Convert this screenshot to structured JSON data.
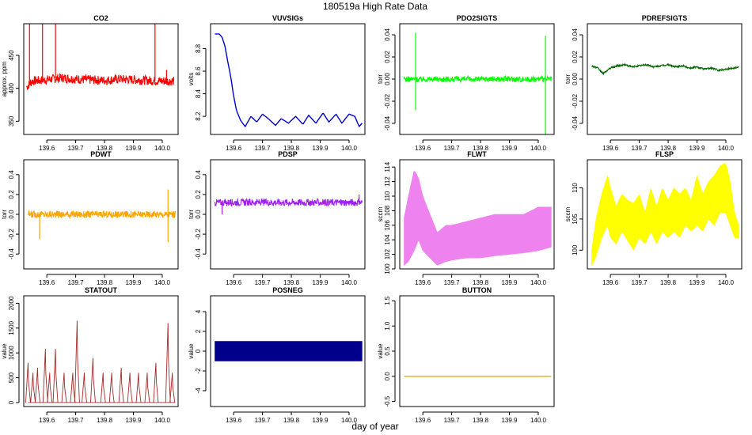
{
  "figure": {
    "title": "180519a   High Rate Data",
    "xlabel": "day of year"
  },
  "chart_data": [
    {
      "id": "co2",
      "type": "line",
      "title": "CO2",
      "ylabel": "approx. ppm",
      "color": "#ff0000",
      "style": "noisy",
      "xlim": [
        139.52,
        140.055
      ],
      "ylim": [
        330,
        498
      ],
      "xticks": [
        139.6,
        139.7,
        139.8,
        139.9,
        140.0
      ],
      "yticks": [
        350,
        400,
        450
      ],
      "x": [
        139.53,
        139.55,
        139.6,
        139.65,
        139.7,
        139.75,
        139.8,
        139.85,
        139.9,
        139.95,
        140.0,
        140.04
      ],
      "y": [
        402,
        411,
        413,
        416,
        414,
        413,
        412,
        414,
        413,
        412,
        411,
        411
      ],
      "noise": 7,
      "spikes": [
        {
          "x": 139.54,
          "y": 498
        },
        {
          "x": 139.585,
          "y": 498
        },
        {
          "x": 139.63,
          "y": 498
        },
        {
          "x": 139.975,
          "y": 498
        },
        {
          "x": 140.015,
          "y": 428
        }
      ]
    },
    {
      "id": "vuvsigs",
      "type": "line",
      "title": "VUVSIGs",
      "ylabel": "volts",
      "color": "#0000cd",
      "style": "line",
      "xlim": [
        139.52,
        140.055
      ],
      "ylim": [
        8.04,
        9.02
      ],
      "xticks": [
        139.6,
        139.7,
        139.8,
        139.9,
        140.0
      ],
      "yticks": [
        8.2,
        8.4,
        8.6,
        8.8
      ],
      "x": [
        139.535,
        139.55,
        139.56,
        139.57,
        139.58,
        139.59,
        139.6,
        139.61,
        139.625,
        139.64,
        139.66,
        139.68,
        139.7,
        139.72,
        139.745,
        139.765,
        139.79,
        139.815,
        139.84,
        139.86,
        139.885,
        139.91,
        139.93,
        139.955,
        139.975,
        140.0,
        140.02,
        140.035,
        140.045
      ],
      "y": [
        8.93,
        8.93,
        8.9,
        8.82,
        8.68,
        8.55,
        8.38,
        8.25,
        8.16,
        8.11,
        8.2,
        8.15,
        8.22,
        8.18,
        8.12,
        8.18,
        8.14,
        8.2,
        8.13,
        8.21,
        8.14,
        8.23,
        8.15,
        8.22,
        8.14,
        8.22,
        8.2,
        8.11,
        8.14
      ]
    },
    {
      "id": "pdo2sigts",
      "type": "line",
      "title": "PDO2SIGTS",
      "ylabel": "torr",
      "color": "#00ff00",
      "style": "noisy",
      "xlim": [
        139.52,
        140.055
      ],
      "ylim": [
        -0.05,
        0.05
      ],
      "xticks": [
        139.6,
        139.7,
        139.8,
        139.9,
        140.0
      ],
      "yticks": [
        -0.04,
        -0.02,
        0.0,
        0.02,
        0.04
      ],
      "x": [
        139.535,
        140.045
      ],
      "y": [
        0.0,
        0.0
      ],
      "noise": 0.0025,
      "spikes": [
        {
          "x": 139.575,
          "y": 0.042
        },
        {
          "x": 139.575,
          "y": -0.028
        },
        {
          "x": 140.025,
          "y": 0.039
        },
        {
          "x": 140.025,
          "y": -0.05
        }
      ]
    },
    {
      "id": "pdrefsigts",
      "type": "line",
      "title": "PDREFSIGTS",
      "ylabel": "torr",
      "color": "#006400",
      "style": "noisy",
      "xlim": [
        139.52,
        140.055
      ],
      "ylim": [
        -0.05,
        0.05
      ],
      "xticks": [
        139.6,
        139.7,
        139.8,
        139.9,
        140.0
      ],
      "yticks": [
        -0.04,
        -0.02,
        0.0,
        0.02,
        0.04
      ],
      "x": [
        139.535,
        139.555,
        139.575,
        139.6,
        139.625,
        139.65,
        139.675,
        139.7,
        139.725,
        139.75,
        139.775,
        139.8,
        139.825,
        139.85,
        139.875,
        139.9,
        139.925,
        139.95,
        139.975,
        140.0,
        140.025,
        140.045
      ],
      "y": [
        0.012,
        0.01,
        0.005,
        0.01,
        0.012,
        0.013,
        0.011,
        0.012,
        0.013,
        0.011,
        0.012,
        0.013,
        0.011,
        0.012,
        0.01,
        0.011,
        0.009,
        0.01,
        0.008,
        0.009,
        0.01,
        0.011
      ],
      "noise": 0.0008
    },
    {
      "id": "pdwt",
      "type": "line",
      "title": "PDWT",
      "ylabel": "torr",
      "color": "#ffa500",
      "style": "noisy",
      "xlim": [
        139.52,
        140.055
      ],
      "ylim": [
        -0.55,
        0.55
      ],
      "xticks": [
        139.6,
        139.7,
        139.8,
        139.9,
        140.0
      ],
      "yticks": [
        -0.4,
        -0.2,
        0.0,
        0.2,
        0.4
      ],
      "x": [
        139.535,
        140.045
      ],
      "y": [
        0.0,
        0.0
      ],
      "noise": 0.035,
      "spikes": [
        {
          "x": 139.575,
          "y": -0.25
        },
        {
          "x": 140.02,
          "y": 0.25
        },
        {
          "x": 140.02,
          "y": -0.28
        }
      ]
    },
    {
      "id": "pdsp",
      "type": "line",
      "title": "PDSP",
      "ylabel": "torr",
      "color": "#a020f0",
      "style": "noisy",
      "xlim": [
        139.52,
        140.055
      ],
      "ylim": [
        -0.55,
        0.55
      ],
      "xticks": [
        139.6,
        139.7,
        139.8,
        139.9,
        140.0
      ],
      "yticks": [
        -0.4,
        -0.2,
        0.0,
        0.2,
        0.4
      ],
      "x": [
        139.535,
        140.045
      ],
      "y": [
        0.12,
        0.12
      ],
      "noise": 0.035,
      "spikes": [
        {
          "x": 139.56,
          "y": 0.0
        },
        {
          "x": 140.035,
          "y": 0.2
        }
      ]
    },
    {
      "id": "flwt",
      "type": "band",
      "title": "FLWT",
      "ylabel": "sccm",
      "color": "#ee82ee",
      "style": "band",
      "xlim": [
        139.52,
        140.055
      ],
      "ylim": [
        100,
        115
      ],
      "xticks": [
        139.6,
        139.7,
        139.8,
        139.9,
        140.0
      ],
      "yticks": [
        100,
        102,
        104,
        106,
        108,
        110,
        112,
        114
      ],
      "x": [
        139.535,
        139.55,
        139.57,
        139.585,
        139.6,
        139.625,
        139.65,
        139.68,
        139.7,
        139.75,
        139.8,
        139.85,
        139.9,
        139.95,
        140.0,
        140.045
      ],
      "upper": [
        107,
        110,
        113.6,
        112.5,
        110,
        107.5,
        105,
        106,
        106,
        106.5,
        107,
        107.5,
        107.5,
        107.5,
        108.5,
        108.5
      ],
      "lower": [
        100.5,
        101,
        102.5,
        104,
        102.5,
        101.5,
        100.5,
        101,
        101.2,
        101.5,
        101.5,
        101.8,
        102,
        102.2,
        102.5,
        103
      ]
    },
    {
      "id": "flsp",
      "type": "band",
      "title": "FLSP",
      "ylabel": "sccm",
      "color": "#ffff00",
      "style": "band",
      "xlim": [
        139.52,
        140.055
      ],
      "ylim": [
        97,
        114.5
      ],
      "xticks": [
        139.6,
        139.7,
        139.8,
        139.9,
        140.0
      ],
      "yticks": [
        100,
        105,
        110
      ],
      "x": [
        139.535,
        139.55,
        139.57,
        139.59,
        139.6,
        139.62,
        139.64,
        139.66,
        139.68,
        139.7,
        139.72,
        139.74,
        139.76,
        139.78,
        139.8,
        139.82,
        139.84,
        139.86,
        139.88,
        139.9,
        139.92,
        139.94,
        139.96,
        139.98,
        140.0,
        140.015,
        140.03,
        140.045
      ],
      "upper": [
        100,
        105,
        109,
        112,
        110,
        107,
        109,
        108,
        107.5,
        109,
        106,
        110,
        107,
        110,
        108,
        110,
        109,
        110,
        108,
        112,
        109,
        111,
        112,
        113.5,
        114,
        111,
        106,
        104
      ],
      "lower": [
        97.5,
        99,
        102,
        104,
        102,
        101,
        103,
        101.5,
        100,
        102,
        101,
        103,
        101,
        103,
        102,
        103,
        102,
        104,
        103,
        104,
        103,
        105,
        104,
        106,
        106,
        104,
        102,
        102
      ]
    },
    {
      "id": "statout",
      "type": "line",
      "title": "STATOUT",
      "ylabel": "value",
      "color": "#a52a2a",
      "style": "step",
      "xlim": [
        139.52,
        140.055
      ],
      "ylim": [
        -80,
        2150
      ],
      "xticks": [
        139.6,
        139.7,
        139.8,
        139.9,
        140.0
      ],
      "yticks": [
        0,
        500,
        1000,
        1500,
        2000
      ],
      "x": [
        139.535,
        140.045
      ],
      "y": [
        0,
        0
      ],
      "pulses": [
        {
          "x": 139.535,
          "h": 800
        },
        {
          "x": 139.552,
          "h": 600
        },
        {
          "x": 139.568,
          "h": 700
        },
        {
          "x": 139.595,
          "h": 1080
        },
        {
          "x": 139.61,
          "h": 600
        },
        {
          "x": 139.63,
          "h": 1080
        },
        {
          "x": 139.66,
          "h": 600
        },
        {
          "x": 139.69,
          "h": 600
        },
        {
          "x": 139.705,
          "h": 1650
        },
        {
          "x": 139.73,
          "h": 600
        },
        {
          "x": 139.76,
          "h": 900
        },
        {
          "x": 139.795,
          "h": 600
        },
        {
          "x": 139.825,
          "h": 600
        },
        {
          "x": 139.858,
          "h": 700
        },
        {
          "x": 139.888,
          "h": 600
        },
        {
          "x": 139.918,
          "h": 600
        },
        {
          "x": 139.948,
          "h": 600
        },
        {
          "x": 139.978,
          "h": 800
        },
        {
          "x": 140.02,
          "h": 1600
        },
        {
          "x": 140.035,
          "h": 600
        }
      ]
    },
    {
      "id": "posneg",
      "type": "band",
      "title": "POSNEG",
      "ylabel": "value",
      "color": "#00008b",
      "style": "band",
      "xlim": [
        139.52,
        140.055
      ],
      "ylim": [
        -5.6,
        5.6
      ],
      "xticks": [
        139.6,
        139.7,
        139.8,
        139.9,
        140.0
      ],
      "yticks": [
        -4,
        -2,
        0,
        2,
        4
      ],
      "x": [
        139.535,
        140.045
      ],
      "upper": [
        1,
        1
      ],
      "lower": [
        -1,
        -1
      ]
    },
    {
      "id": "button",
      "type": "line",
      "title": "BUTTON",
      "ylabel": "value",
      "color": "#ffa500",
      "style": "line",
      "xlim": [
        139.52,
        140.055
      ],
      "ylim": [
        -0.6,
        1.6
      ],
      "xticks": [
        139.6,
        139.7,
        139.8,
        139.9,
        140.0
      ],
      "yticks": [
        -0.5,
        0.0,
        0.5,
        1.0,
        1.5
      ],
      "x": [
        139.535,
        140.045
      ],
      "y": [
        0,
        0
      ]
    }
  ]
}
